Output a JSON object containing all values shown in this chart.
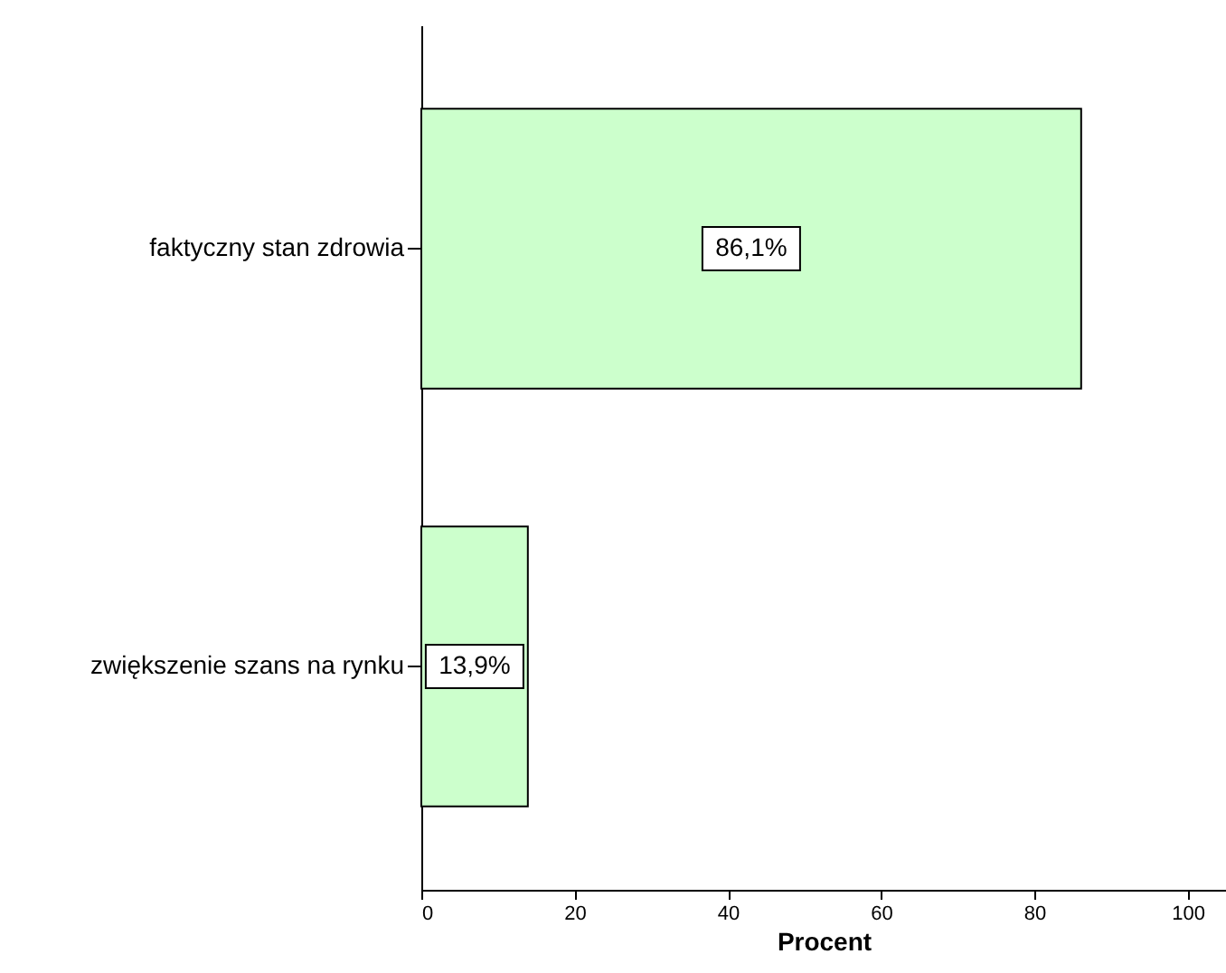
{
  "chart_data": {
    "type": "bar",
    "orientation": "horizontal",
    "xlabel": "Procent",
    "categories": [
      "faktyczny stan zdrowia",
      "zwiększenie szans na rynku"
    ],
    "values": [
      86.1,
      13.9
    ],
    "value_labels": [
      "86,1%",
      "13,9%"
    ],
    "color": "#ccffcc",
    "xlim": [
      0,
      105
    ],
    "xticks": [
      0,
      20,
      40,
      60,
      80,
      100
    ]
  }
}
